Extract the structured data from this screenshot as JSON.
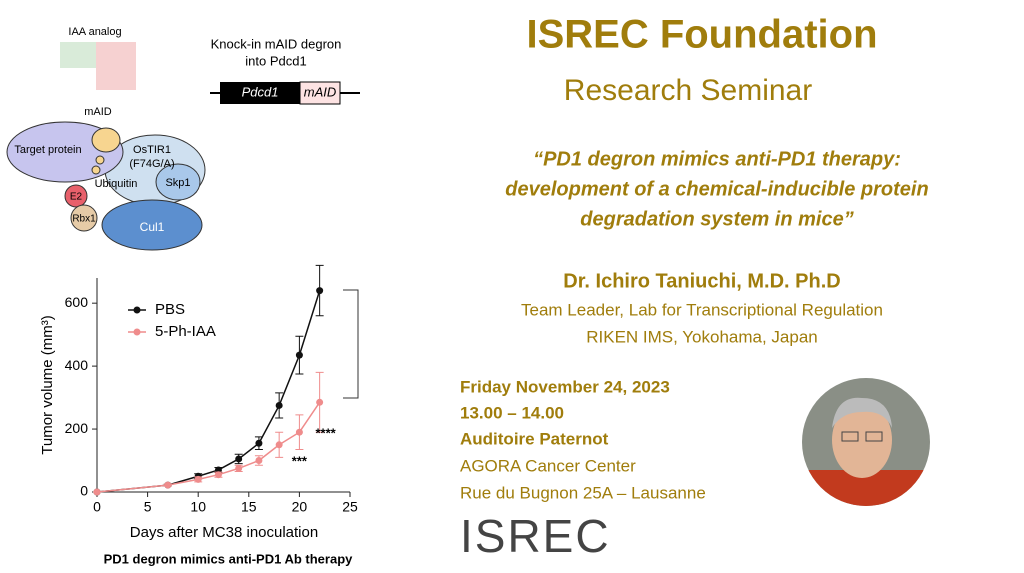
{
  "slide": {
    "title": "ISREC Foundation",
    "subtitle": "Research Seminar",
    "talk_title": [
      "“PD1 degron mimics anti-PD1 therapy:",
      "development of a chemical-inducible protein",
      "degradation system in mice”"
    ],
    "speaker": "Dr. Ichiro Taniuchi, M.D. Ph.D",
    "affiliation": [
      "Team Leader, Lab for Transcriptional Regulation",
      "RIKEN IMS, Yokohama, Japan"
    ],
    "when_where": [
      "Friday November 24, 2023",
      "13.00 – 14.00",
      "Auditoire Paternot"
    ],
    "venue": [
      "AGORA Cancer Center",
      "Rue du Bugnon 25A – Lausanne"
    ],
    "logo": "ISREC"
  },
  "diagram": {
    "iaa_label": "IAA analog",
    "knockin": [
      "Knock-in mAID degron",
      "into Pdcd1"
    ],
    "gene_boxes": [
      "Pdcd1",
      "mAID"
    ],
    "nodes": [
      "mAID",
      "OsTIR1",
      "(F74G/A)",
      "Target protein",
      "Ubiquitin",
      "Skp1",
      "E2",
      "Rbx1",
      "Cul1"
    ]
  },
  "chart_data": {
    "type": "line",
    "caption": "PD1 degron mimics anti-PD1 Ab therapy",
    "x_label": "Days after MC38 inoculation",
    "y_label": "Tumor volume (mm³)",
    "x": [
      0,
      7,
      10,
      12,
      14,
      16,
      18,
      20,
      22
    ],
    "series": [
      {
        "name": "PBS",
        "color": "#111111",
        "values": [
          0,
          22,
          50,
          70,
          105,
          155,
          275,
          435,
          640
        ],
        "errors": [
          0,
          3,
          8,
          8,
          15,
          20,
          40,
          60,
          80
        ]
      },
      {
        "name": "5-Ph-IAA",
        "color": "#ef8c8c",
        "values": [
          0,
          22,
          40,
          55,
          75,
          100,
          150,
          190,
          285
        ],
        "errors": [
          0,
          3,
          8,
          8,
          10,
          15,
          40,
          55,
          95
        ]
      }
    ],
    "annotations": [
      "***",
      "****"
    ],
    "xlim": [
      0,
      25
    ],
    "xticks": [
      0,
      5,
      10,
      15,
      20,
      25
    ],
    "ylim": [
      0,
      680
    ],
    "yticks": [
      0,
      200,
      400,
      600
    ],
    "legend": "upper left"
  }
}
